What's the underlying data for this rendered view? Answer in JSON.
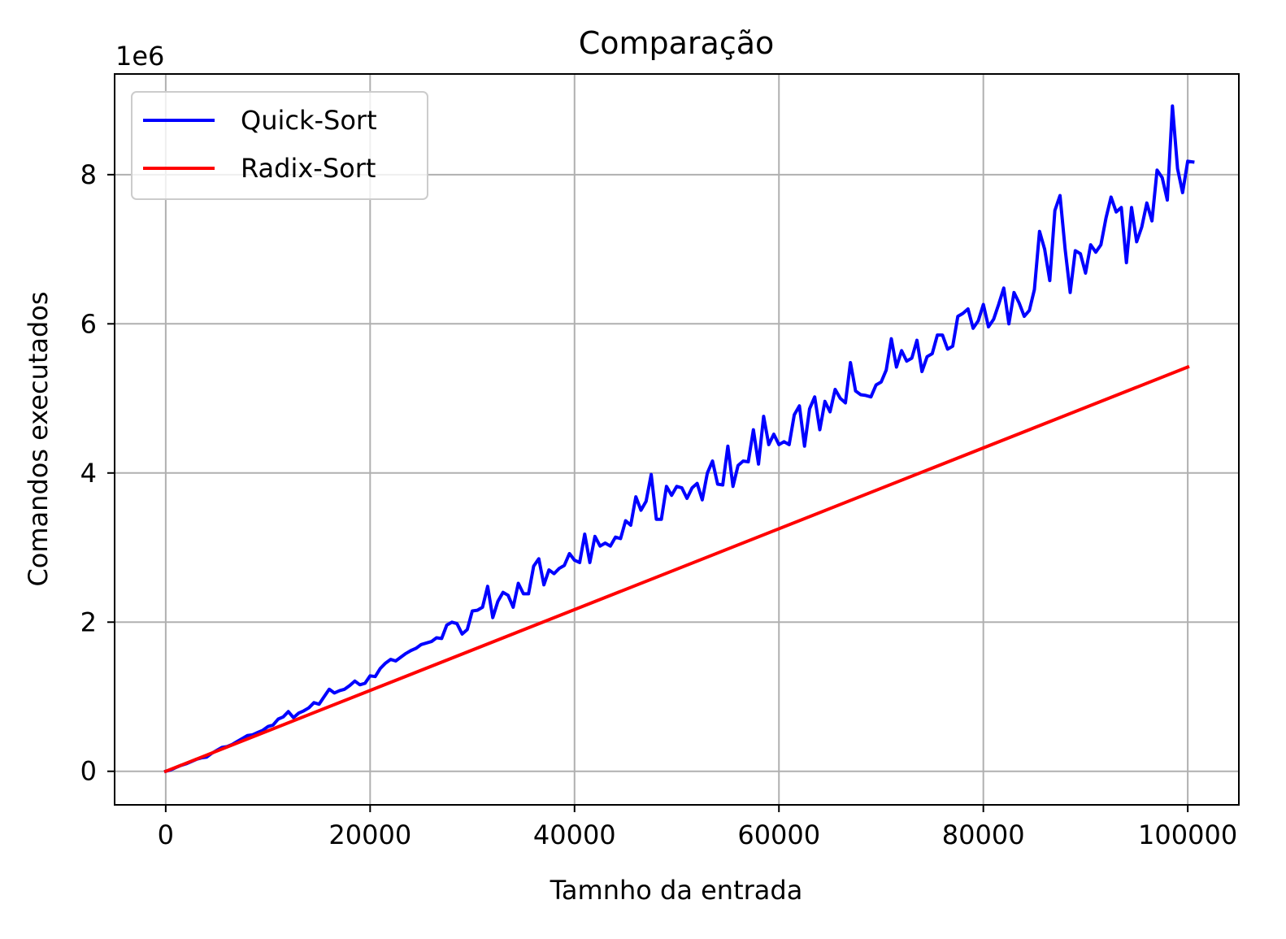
{
  "chart_data": {
    "type": "line",
    "title": "Comparação",
    "xlabel": "Tamnho da entrada",
    "ylabel": "Comandos executados",
    "y_offset_label": "1e6",
    "xlim": [
      -5000,
      105000
    ],
    "ylim": [
      -0.45,
      9.35
    ],
    "y_scale": 1000000,
    "xticks": [
      0,
      20000,
      40000,
      60000,
      80000,
      100000
    ],
    "xtick_labels": [
      "0",
      "20000",
      "40000",
      "60000",
      "80000",
      "100000"
    ],
    "yticks": [
      0,
      2,
      4,
      6,
      8
    ],
    "ytick_labels": [
      "0",
      "2",
      "4",
      "6",
      "8"
    ],
    "grid": true,
    "legend_position": "upper-left",
    "series": [
      {
        "name": "Quick-Sort",
        "color": "#0000ff",
        "points": [
          [
            0,
            0.0
          ],
          [
            500,
            0.02
          ],
          [
            1000,
            0.05
          ],
          [
            1500,
            0.08
          ],
          [
            2000,
            0.1
          ],
          [
            2500,
            0.13
          ],
          [
            3000,
            0.16
          ],
          [
            3500,
            0.18
          ],
          [
            4000,
            0.19
          ],
          [
            4500,
            0.24
          ],
          [
            5000,
            0.28
          ],
          [
            5500,
            0.32
          ],
          [
            6000,
            0.33
          ],
          [
            6500,
            0.36
          ],
          [
            7000,
            0.4
          ],
          [
            7500,
            0.44
          ],
          [
            8000,
            0.48
          ],
          [
            8500,
            0.49
          ],
          [
            9000,
            0.52
          ],
          [
            9500,
            0.55
          ],
          [
            10000,
            0.6
          ],
          [
            10500,
            0.62
          ],
          [
            11000,
            0.7
          ],
          [
            11500,
            0.73
          ],
          [
            12000,
            0.8
          ],
          [
            12500,
            0.72
          ],
          [
            13000,
            0.78
          ],
          [
            13500,
            0.81
          ],
          [
            14000,
            0.85
          ],
          [
            14500,
            0.92
          ],
          [
            15000,
            0.9
          ],
          [
            15500,
            1.0
          ],
          [
            16000,
            1.1
          ],
          [
            16500,
            1.05
          ],
          [
            17000,
            1.08
          ],
          [
            17500,
            1.1
          ],
          [
            18000,
            1.15
          ],
          [
            18500,
            1.21
          ],
          [
            19000,
            1.16
          ],
          [
            19500,
            1.18
          ],
          [
            20000,
            1.28
          ],
          [
            20500,
            1.27
          ],
          [
            21000,
            1.38
          ],
          [
            21500,
            1.45
          ],
          [
            22000,
            1.5
          ],
          [
            22500,
            1.48
          ],
          [
            23000,
            1.53
          ],
          [
            23500,
            1.58
          ],
          [
            24000,
            1.62
          ],
          [
            24500,
            1.65
          ],
          [
            25000,
            1.7
          ],
          [
            25500,
            1.72
          ],
          [
            26000,
            1.74
          ],
          [
            26500,
            1.79
          ],
          [
            27000,
            1.78
          ],
          [
            27500,
            1.96
          ],
          [
            28000,
            2.0
          ],
          [
            28500,
            1.98
          ],
          [
            29000,
            1.84
          ],
          [
            29500,
            1.9
          ],
          [
            30000,
            2.15
          ],
          [
            30500,
            2.16
          ],
          [
            31000,
            2.2
          ],
          [
            31500,
            2.48
          ],
          [
            32000,
            2.06
          ],
          [
            32500,
            2.28
          ],
          [
            33000,
            2.4
          ],
          [
            33500,
            2.36
          ],
          [
            34000,
            2.2
          ],
          [
            34500,
            2.52
          ],
          [
            35000,
            2.38
          ],
          [
            35500,
            2.38
          ],
          [
            36000,
            2.75
          ],
          [
            36500,
            2.85
          ],
          [
            37000,
            2.5
          ],
          [
            37500,
            2.7
          ],
          [
            38000,
            2.65
          ],
          [
            38500,
            2.72
          ],
          [
            39000,
            2.76
          ],
          [
            39500,
            2.92
          ],
          [
            40000,
            2.83
          ],
          [
            40500,
            2.8
          ],
          [
            41000,
            3.18
          ],
          [
            41500,
            2.8
          ],
          [
            42000,
            3.15
          ],
          [
            42500,
            3.02
          ],
          [
            43000,
            3.06
          ],
          [
            43500,
            3.02
          ],
          [
            44000,
            3.14
          ],
          [
            44500,
            3.12
          ],
          [
            45000,
            3.36
          ],
          [
            45500,
            3.3
          ],
          [
            46000,
            3.68
          ],
          [
            46500,
            3.5
          ],
          [
            47000,
            3.62
          ],
          [
            47500,
            3.98
          ],
          [
            48000,
            3.38
          ],
          [
            48500,
            3.38
          ],
          [
            49000,
            3.82
          ],
          [
            49500,
            3.7
          ],
          [
            50000,
            3.82
          ],
          [
            50500,
            3.8
          ],
          [
            51000,
            3.66
          ],
          [
            51500,
            3.8
          ],
          [
            52000,
            3.86
          ],
          [
            52500,
            3.64
          ],
          [
            53000,
            4.0
          ],
          [
            53500,
            4.16
          ],
          [
            54000,
            3.85
          ],
          [
            54500,
            3.84
          ],
          [
            55000,
            4.36
          ],
          [
            55500,
            3.82
          ],
          [
            56000,
            4.1
          ],
          [
            56500,
            4.16
          ],
          [
            57000,
            4.15
          ],
          [
            57500,
            4.58
          ],
          [
            58000,
            4.12
          ],
          [
            58500,
            4.76
          ],
          [
            59000,
            4.38
          ],
          [
            59500,
            4.52
          ],
          [
            60000,
            4.38
          ],
          [
            60500,
            4.42
          ],
          [
            61000,
            4.38
          ],
          [
            61500,
            4.78
          ],
          [
            62000,
            4.9
          ],
          [
            62500,
            4.36
          ],
          [
            63000,
            4.86
          ],
          [
            63500,
            5.02
          ],
          [
            64000,
            4.58
          ],
          [
            64500,
            4.96
          ],
          [
            65000,
            4.82
          ],
          [
            65500,
            5.12
          ],
          [
            66000,
            5.0
          ],
          [
            66500,
            4.94
          ],
          [
            67000,
            5.48
          ],
          [
            67500,
            5.1
          ],
          [
            68000,
            5.05
          ],
          [
            68500,
            5.04
          ],
          [
            69000,
            5.02
          ],
          [
            69500,
            5.18
          ],
          [
            70000,
            5.22
          ],
          [
            70500,
            5.38
          ],
          [
            71000,
            5.8
          ],
          [
            71500,
            5.42
          ],
          [
            72000,
            5.64
          ],
          [
            72500,
            5.5
          ],
          [
            73000,
            5.54
          ],
          [
            73500,
            5.78
          ],
          [
            74000,
            5.36
          ],
          [
            74500,
            5.56
          ],
          [
            75000,
            5.6
          ],
          [
            75500,
            5.85
          ],
          [
            76000,
            5.85
          ],
          [
            76500,
            5.66
          ],
          [
            77000,
            5.7
          ],
          [
            77500,
            6.1
          ],
          [
            78000,
            6.14
          ],
          [
            78500,
            6.2
          ],
          [
            79000,
            5.94
          ],
          [
            79500,
            6.04
          ],
          [
            80000,
            6.26
          ],
          [
            80500,
            5.96
          ],
          [
            81000,
            6.06
          ],
          [
            81500,
            6.26
          ],
          [
            82000,
            6.48
          ],
          [
            82500,
            6.0
          ],
          [
            83000,
            6.42
          ],
          [
            83500,
            6.28
          ],
          [
            84000,
            6.1
          ],
          [
            84500,
            6.18
          ],
          [
            85000,
            6.46
          ],
          [
            85500,
            7.24
          ],
          [
            86000,
            7.0
          ],
          [
            86500,
            6.58
          ],
          [
            87000,
            7.52
          ],
          [
            87500,
            7.72
          ],
          [
            88000,
            7.0
          ],
          [
            88500,
            6.42
          ],
          [
            89000,
            6.98
          ],
          [
            89500,
            6.94
          ],
          [
            90000,
            6.68
          ],
          [
            90500,
            7.06
          ],
          [
            91000,
            6.96
          ],
          [
            91500,
            7.06
          ],
          [
            92000,
            7.42
          ],
          [
            92500,
            7.7
          ],
          [
            93000,
            7.5
          ],
          [
            93500,
            7.56
          ],
          [
            94000,
            6.82
          ],
          [
            94500,
            7.56
          ],
          [
            95000,
            7.1
          ],
          [
            95500,
            7.3
          ],
          [
            96000,
            7.62
          ],
          [
            96500,
            7.38
          ],
          [
            97000,
            8.06
          ],
          [
            97500,
            7.96
          ],
          [
            98000,
            7.66
          ],
          [
            98500,
            8.92
          ],
          [
            99000,
            8.08
          ],
          [
            99500,
            7.76
          ],
          [
            100000,
            8.18
          ],
          [
            100500,
            8.17
          ]
        ]
      },
      {
        "name": "Radix-Sort",
        "color": "#ff0000",
        "points": [
          [
            0,
            0.0
          ],
          [
            100000,
            5.42
          ]
        ]
      }
    ]
  }
}
